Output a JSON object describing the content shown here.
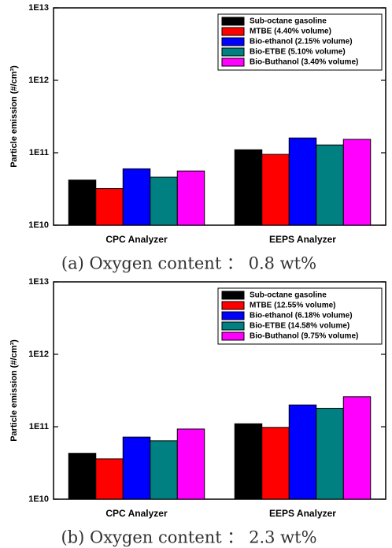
{
  "chart_data": [
    {
      "type": "bar",
      "log_scale": true,
      "legend": "upper right",
      "ylabel": "Particle emission (#/cm³)",
      "caption": "(a)  Oxygen  content ： 0.8  wt%",
      "categories": [
        "CPC Analyzer",
        "EEPS Analyzer"
      ],
      "ylim": [
        10000000000.0,
        10000000000000.0
      ],
      "yticks": [
        {
          "value": 10000000000.0,
          "label": "1E10"
        },
        {
          "value": 100000000000.0,
          "label": "1E11"
        },
        {
          "value": 1000000000000.0,
          "label": "1E12"
        },
        {
          "value": 10000000000000.0,
          "label": "1E13"
        }
      ],
      "series": [
        {
          "name": "Sub-octane gasoline",
          "color": "#000000",
          "values": [
            42000000000.0,
            110000000000.0
          ]
        },
        {
          "name": "MTBE (4.40% volume)",
          "color": "#ff0000",
          "values": [
            32000000000.0,
            95000000000.0
          ]
        },
        {
          "name": "Bio-ethanol (2.15% volume)",
          "color": "#0000ff",
          "values": [
            60000000000.0,
            160000000000.0
          ]
        },
        {
          "name": "Bio-ETBE (5.10% volume)",
          "color": "#008080",
          "values": [
            46000000000.0,
            128000000000.0
          ]
        },
        {
          "name": "Bio-Buthanol (3.40% volume)",
          "color": "#ff00ff",
          "values": [
            56000000000.0,
            153000000000.0
          ]
        }
      ]
    },
    {
      "type": "bar",
      "log_scale": true,
      "legend": "upper right",
      "ylabel": "Particle emission (#/cm³)",
      "caption": "(b)  Oxygen  content ： 2.3  wt%",
      "categories": [
        "CPC Analyzer",
        "EEPS Analyzer"
      ],
      "ylim": [
        10000000000.0,
        10000000000000.0
      ],
      "yticks": [
        {
          "value": 10000000000.0,
          "label": "1E10"
        },
        {
          "value": 100000000000.0,
          "label": "1E11"
        },
        {
          "value": 1000000000000.0,
          "label": "1E12"
        },
        {
          "value": 10000000000000.0,
          "label": "1E13"
        }
      ],
      "series": [
        {
          "name": "Sub-octane gasoline",
          "color": "#000000",
          "values": [
            43000000000.0,
            110000000000.0
          ]
        },
        {
          "name": "MTBE (12.55% volume)",
          "color": "#ff0000",
          "values": [
            36000000000.0,
            98000000000.0
          ]
        },
        {
          "name": "Bio-ethanol (6.18% volume)",
          "color": "#0000ff",
          "values": [
            72000000000.0,
            200000000000.0
          ]
        },
        {
          "name": "Bio-ETBE (14.58% volume)",
          "color": "#008080",
          "values": [
            64000000000.0,
            180000000000.0
          ]
        },
        {
          "name": "Bio-Buthanol (9.75% volume)",
          "color": "#ff00ff",
          "values": [
            93000000000.0,
            260000000000.0
          ]
        }
      ]
    }
  ]
}
